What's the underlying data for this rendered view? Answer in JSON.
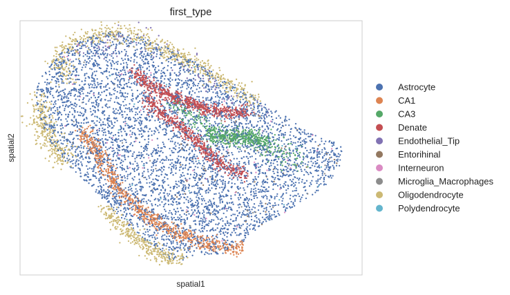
{
  "chart_data": {
    "type": "scatter",
    "title": "first_type",
    "xlabel": "spatial1",
    "ylabel": "spatial2",
    "xlim": [
      0,
      100
    ],
    "ylim": [
      0,
      100
    ],
    "grid": false,
    "ticks": false,
    "legend_placement": "right",
    "series": [
      {
        "name": "Astrocyte",
        "color": "#4C72B0"
      },
      {
        "name": "CA1",
        "color": "#DD8452"
      },
      {
        "name": "CA3",
        "color": "#55A868"
      },
      {
        "name": "Denate",
        "color": "#C44E52"
      },
      {
        "name": "Endothelial_Tip",
        "color": "#8172B3"
      },
      {
        "name": "Entorihinal",
        "color": "#937860"
      },
      {
        "name": "Interneuron",
        "color": "#DA8BC3"
      },
      {
        "name": "Microglia_Macrophages",
        "color": "#8C8C8C"
      },
      {
        "name": "Oligodendrocyte",
        "color": "#CCB974"
      },
      {
        "name": "Polydendrocyte",
        "color": "#64B5CD"
      }
    ]
  }
}
